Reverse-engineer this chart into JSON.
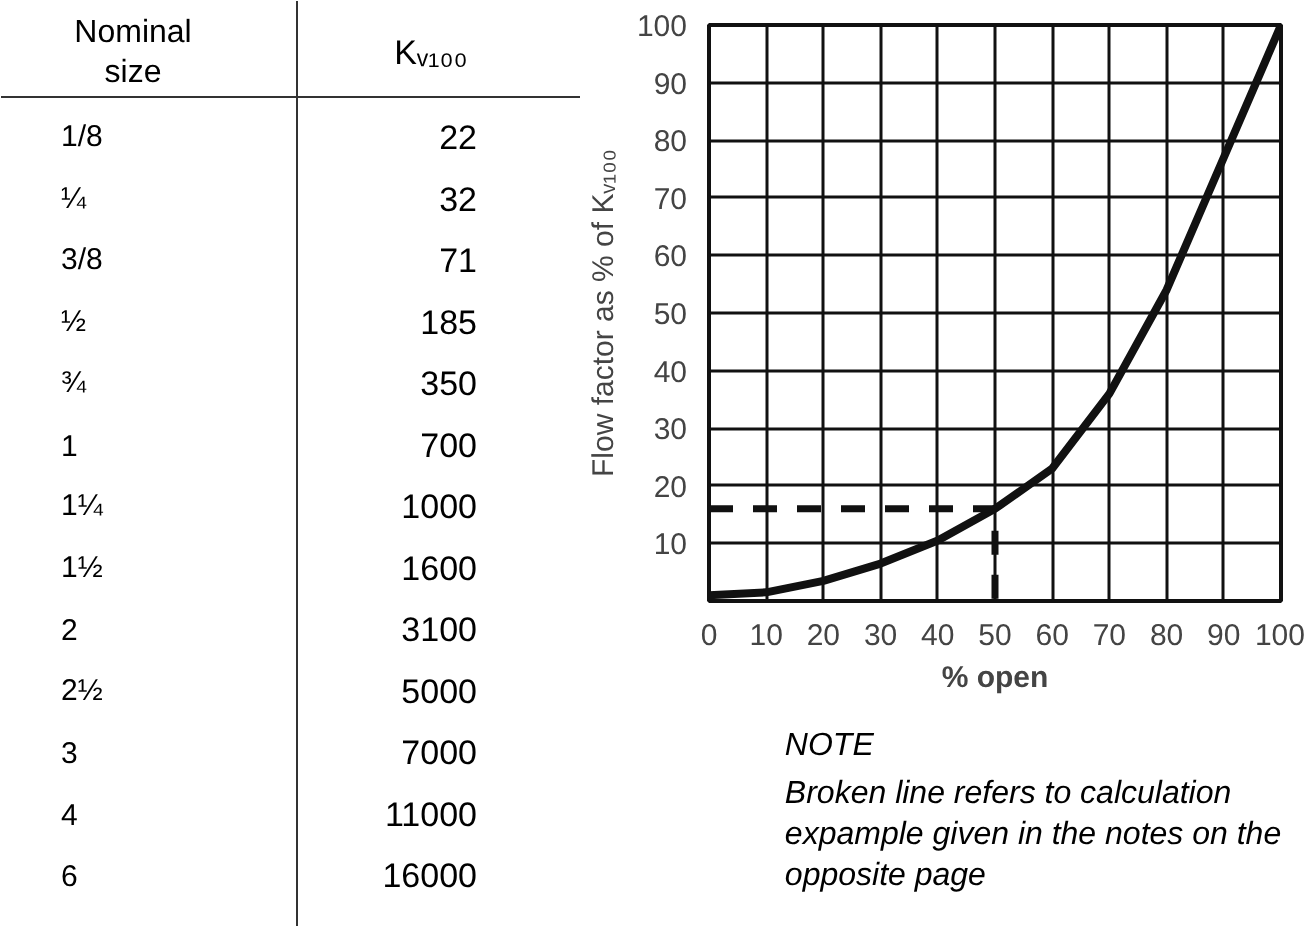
{
  "chart_data": [
    {
      "type": "other",
      "xlabel": "Nominal size",
      "ylabel": "Kᵥ₁₀₀",
      "categories": [
        "1/8",
        "¼",
        "3/8",
        "½",
        "¾",
        "1",
        "1¼",
        "1½",
        "2",
        "2½",
        "3",
        "4",
        "6"
      ],
      "values": [
        22,
        32,
        71,
        185,
        350,
        700,
        1000,
        1600,
        3100,
        5000,
        7000,
        11000,
        16000
      ],
      "data_labels": true
    },
    {
      "type": "line",
      "xlabel": "% open",
      "ylabel": "Flow factor as % of Kᵥ₁₀₀",
      "xlim": [
        0,
        100
      ],
      "ylim": [
        0,
        100
      ],
      "xticks": [
        0,
        10,
        20,
        30,
        40,
        50,
        60,
        70,
        80,
        90,
        100
      ],
      "yticks": [
        10,
        20,
        30,
        40,
        50,
        60,
        70,
        80,
        90,
        100
      ],
      "grid": true,
      "marker": "none",
      "series": [
        {
          "color": "#111111",
          "line_style": "solid",
          "x": [
            0,
            10,
            20,
            30,
            40,
            50,
            60,
            70,
            80,
            90,
            100
          ],
          "values": [
            1,
            1.5,
            3.5,
            6.5,
            10.5,
            16,
            23,
            36,
            54,
            77,
            100
          ]
        },
        {
          "color": "#111111",
          "line_style": "dashed",
          "x": [
            0,
            50,
            50
          ],
          "values": [
            16,
            16,
            0
          ]
        }
      ],
      "annotations": [
        "NOTE",
        "Broken line refers to calculation expample given in the notes on the opposite page"
      ]
    }
  ]
}
